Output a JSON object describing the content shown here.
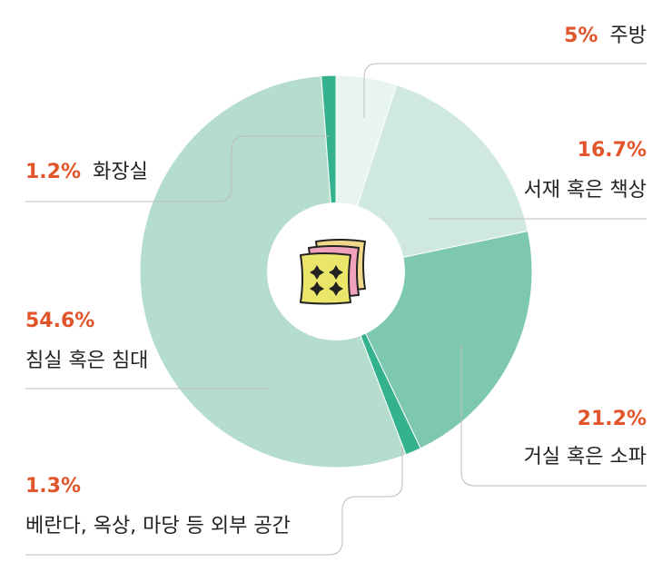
{
  "chart_data": {
    "type": "pie",
    "donut": true,
    "start_angle_deg": 0,
    "direction": "clockwise",
    "slices": [
      {
        "value": 5,
        "value_label": "5%",
        "label": "주방",
        "color": "#e8f4ee",
        "callout": "top-right"
      },
      {
        "value": 16.7,
        "value_label": "16.7%",
        "label": "서재 혹은 책상",
        "color": "#cfe9de",
        "callout": "right"
      },
      {
        "value": 21.2,
        "value_label": "21.2%",
        "label": "거실 혹은 소파",
        "color": "#7ec8b0",
        "callout": "bottom-right"
      },
      {
        "value": 1.3,
        "value_label": "1.3%",
        "label": "베란다, 옥상, 마당 등 외부 공간",
        "color": "#34b28e",
        "callout": "bottom-left"
      },
      {
        "value": 54.6,
        "value_label": "54.6%",
        "label": "침실 혹은 침대",
        "color": "#b5ddcd",
        "callout": "left"
      },
      {
        "value": 1.2,
        "value_label": "1.2%",
        "label": "화장실",
        "color": "#34b28e",
        "callout": "top-left"
      }
    ],
    "center_icon": "cushion-icon"
  },
  "colors": {
    "accent": "#e2552a",
    "leader": "#bdbdbd",
    "text": "#222222"
  }
}
